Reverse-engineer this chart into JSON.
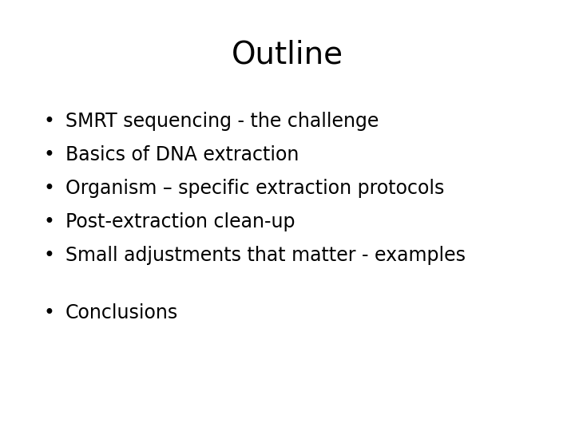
{
  "title": "Outline",
  "title_fontsize": 28,
  "background_color": "#ffffff",
  "text_color": "#000000",
  "bullet_items": [
    "SMRT sequencing - the challenge",
    "Basics of DNA extraction",
    "Organism – specific extraction protocols",
    "Post-extraction clean-up",
    "Small adjustments that matter - examples"
  ],
  "extra_items": [
    "Conclusions"
  ],
  "bullet_fontsize": 17,
  "font_family": "DejaVu Sans"
}
